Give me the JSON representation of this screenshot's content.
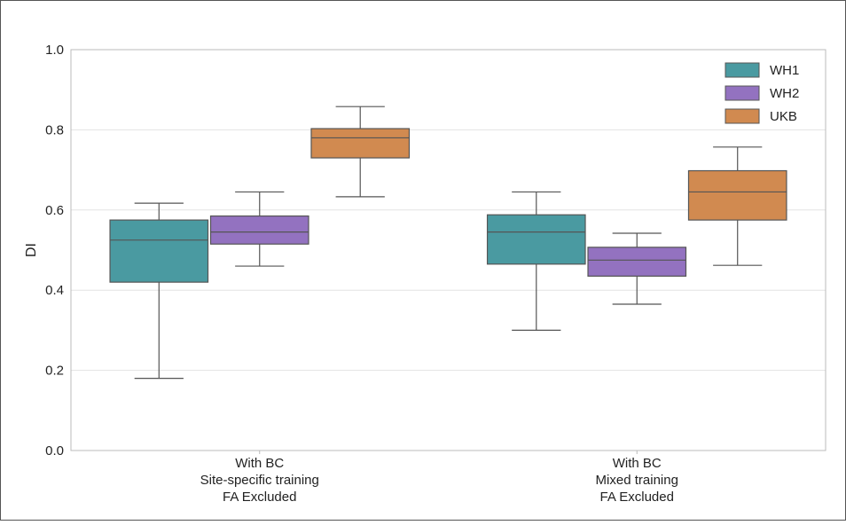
{
  "chart_data": {
    "type": "box",
    "title": "",
    "xlabel": "",
    "ylabel": "DI",
    "ylim": [
      0.0,
      1.0
    ],
    "yticks": [
      "0.0",
      "0.2",
      "0.4",
      "0.6",
      "0.8",
      "1.0"
    ],
    "grid": "horizontal",
    "legend_position": "top-right",
    "categories": [
      [
        "With BC",
        "Site-specific training",
        "FA Excluded"
      ],
      [
        "With BC",
        "Mixed training",
        "FA Excluded"
      ]
    ],
    "series": [
      {
        "name": "WH1",
        "color": "#4a9aa1",
        "boxes": [
          {
            "whisker_low": 0.18,
            "q1": 0.42,
            "median": 0.525,
            "q3": 0.575,
            "whisker_high": 0.617
          },
          {
            "whisker_low": 0.3,
            "q1": 0.465,
            "median": 0.545,
            "q3": 0.588,
            "whisker_high": 0.645
          }
        ]
      },
      {
        "name": "WH2",
        "color": "#9372c0",
        "boxes": [
          {
            "whisker_low": 0.46,
            "q1": 0.515,
            "median": 0.545,
            "q3": 0.585,
            "whisker_high": 0.645
          },
          {
            "whisker_low": 0.365,
            "q1": 0.435,
            "median": 0.475,
            "q3": 0.507,
            "whisker_high": 0.542
          }
        ]
      },
      {
        "name": "UKB",
        "color": "#d18a50",
        "boxes": [
          {
            "whisker_low": 0.633,
            "q1": 0.73,
            "median": 0.78,
            "q3": 0.803,
            "whisker_high": 0.858
          },
          {
            "whisker_low": 0.462,
            "q1": 0.575,
            "median": 0.645,
            "q3": 0.698,
            "whisker_high": 0.757
          }
        ]
      }
    ]
  }
}
